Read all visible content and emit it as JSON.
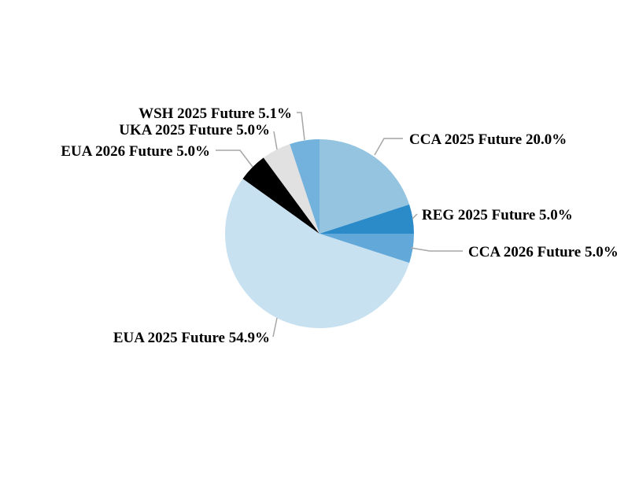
{
  "chart_data": {
    "type": "pie",
    "title": "",
    "start_angle_deg": 0,
    "direction": "clockwise",
    "slices": [
      {
        "name": "CCA 2025 Future",
        "value": 20.0,
        "label": "CCA 2025 Future 20.0%",
        "color": "#94c4e0"
      },
      {
        "name": "REG 2025 Future",
        "value": 5.0,
        "label": "REG 2025 Future 5.0%",
        "color": "#2b8ac8"
      },
      {
        "name": "CCA 2026 Future",
        "value": 5.0,
        "label": "CCA 2026 Future 5.0%",
        "color": "#62a9d9"
      },
      {
        "name": "EUA 2025 Future",
        "value": 54.9,
        "label": "EUA 2025 Future 54.9%",
        "color": "#c8e1f1"
      },
      {
        "name": "EUA 2026 Future",
        "value": 5.0,
        "label": "EUA 2026 Future 5.0%",
        "color": "#000000"
      },
      {
        "name": "UKA 2025 Future",
        "value": 5.0,
        "label": "UKA 2025 Future 5.0%",
        "color": "#e1e1e1"
      },
      {
        "name": "WSH 2025 Future",
        "value": 5.1,
        "label": "WSH 2025 Future 5.1%",
        "color": "#73b2dc"
      }
    ]
  }
}
